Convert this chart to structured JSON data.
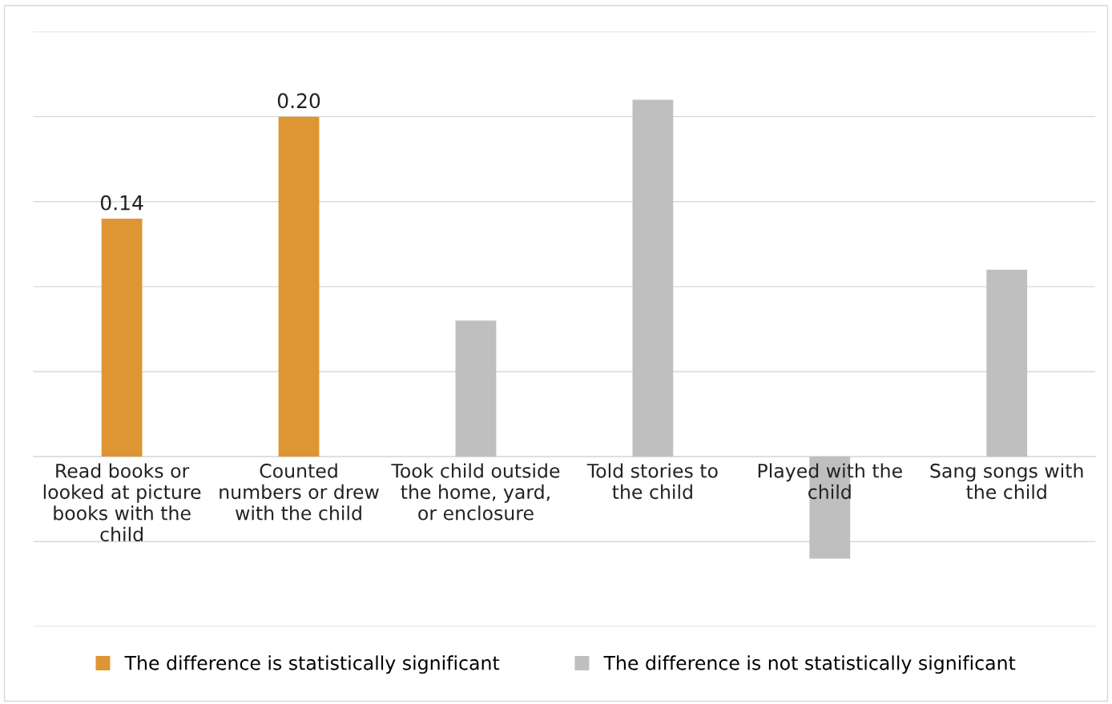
{
  "chart_data": {
    "type": "bar",
    "categories": [
      "Read books or\nlooked at picture\nbooks with the\nchild",
      "Counted\nnumbers or drew\nwith the child",
      "Took child outside\nthe home, yard,\nor enclosure",
      "Told stories to\nthe child",
      "Played with the\nchild",
      "Sang songs with\nthe child"
    ],
    "series": [
      {
        "name": "The difference is statistically significant",
        "color": "#dd9633",
        "values": [
          0.14,
          0.2,
          null,
          null,
          null,
          null
        ],
        "value_labels": [
          "0.14",
          "0.20",
          null,
          null,
          null,
          null
        ]
      },
      {
        "name": "The difference is not statistically significant",
        "color": "#bfbfbf",
        "values": [
          null,
          null,
          0.08,
          0.21,
          -0.06,
          0.11
        ]
      }
    ],
    "ylim": [
      -0.1,
      0.25
    ],
    "yticks": [
      {
        "value": -0.1,
        "label": null
      },
      {
        "value": -0.05,
        "label": null
      },
      {
        "value": 0,
        "label": null
      },
      {
        "value": 0.05,
        "label": null
      },
      {
        "value": 0.1,
        "label": null
      },
      {
        "value": 0.15,
        "label": null
      },
      {
        "value": 0.2,
        "label": null
      },
      {
        "value": 0.25,
        "label": null
      }
    ],
    "tick_labels": "x",
    "grid": "y",
    "legend": "bottom"
  }
}
